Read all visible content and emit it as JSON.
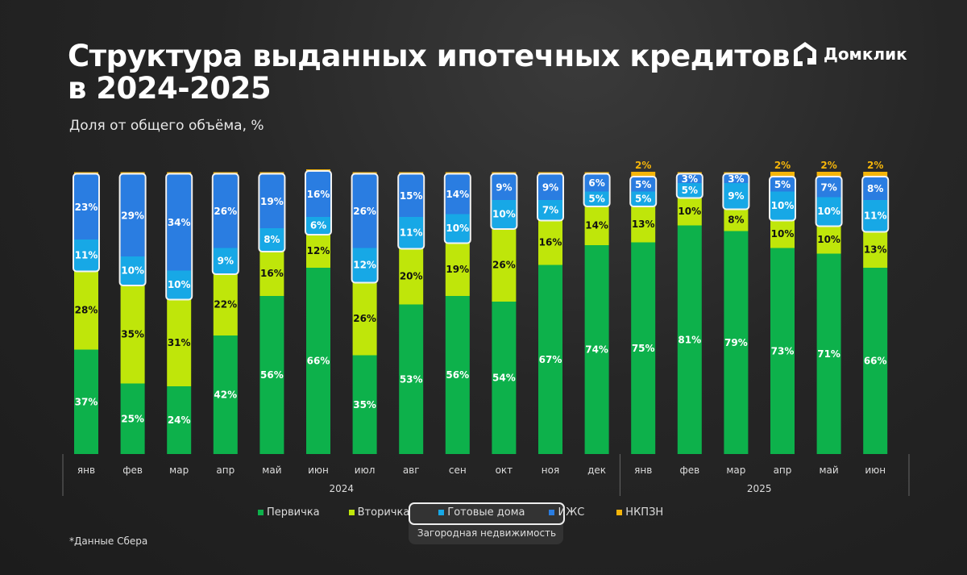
{
  "title_line1": "Структура выданных ипотечных кредитов",
  "title_line2": "в 2024-2025",
  "subtitle": "Доля от общего объёма, %",
  "logo_text": "Домклик",
  "footnote": "*Данные Сбера",
  "legend_group_label": "Загородная недвижимость",
  "chart_data": {
    "type": "bar",
    "stacked": true,
    "unit": "%",
    "categories": [
      "янв",
      "фев",
      "мар",
      "апр",
      "май",
      "июн",
      "июл",
      "авг",
      "сен",
      "окт",
      "ноя",
      "дек",
      "янв",
      "фев",
      "мар",
      "апр",
      "май",
      "июн"
    ],
    "years": [
      {
        "label": "2024",
        "count": 12
      },
      {
        "label": "2025",
        "count": 6
      }
    ],
    "series": [
      {
        "name": "Первичка",
        "color": "#0db14b",
        "values": [
          37,
          25,
          24,
          42,
          56,
          66,
          35,
          53,
          56,
          54,
          67,
          74,
          75,
          81,
          79,
          73,
          71,
          66
        ]
      },
      {
        "name": "Вторичка",
        "color": "#bfe60a",
        "values": [
          28,
          35,
          31,
          22,
          16,
          12,
          26,
          20,
          19,
          26,
          16,
          14,
          13,
          10,
          8,
          10,
          10,
          13
        ]
      },
      {
        "name": "Готовые дома",
        "color": "#17a8e6",
        "values": [
          11,
          10,
          10,
          9,
          8,
          6,
          12,
          11,
          10,
          10,
          7,
          5,
          5,
          5,
          9,
          10,
          10,
          11
        ]
      },
      {
        "name": "ИЖС",
        "color": "#2a7de1",
        "values": [
          23,
          29,
          34,
          26,
          19,
          16,
          26,
          15,
          14,
          9,
          9,
          6,
          5,
          3,
          3,
          5,
          7,
          8
        ]
      },
      {
        "name": "НКПЗН",
        "color": "#f5b50a",
        "values": [
          null,
          null,
          null,
          null,
          null,
          null,
          null,
          null,
          null,
          null,
          null,
          null,
          2,
          null,
          null,
          2,
          2,
          2
        ]
      }
    ],
    "ylim": [
      0,
      100
    ],
    "grid": false,
    "legend": "bottom"
  }
}
